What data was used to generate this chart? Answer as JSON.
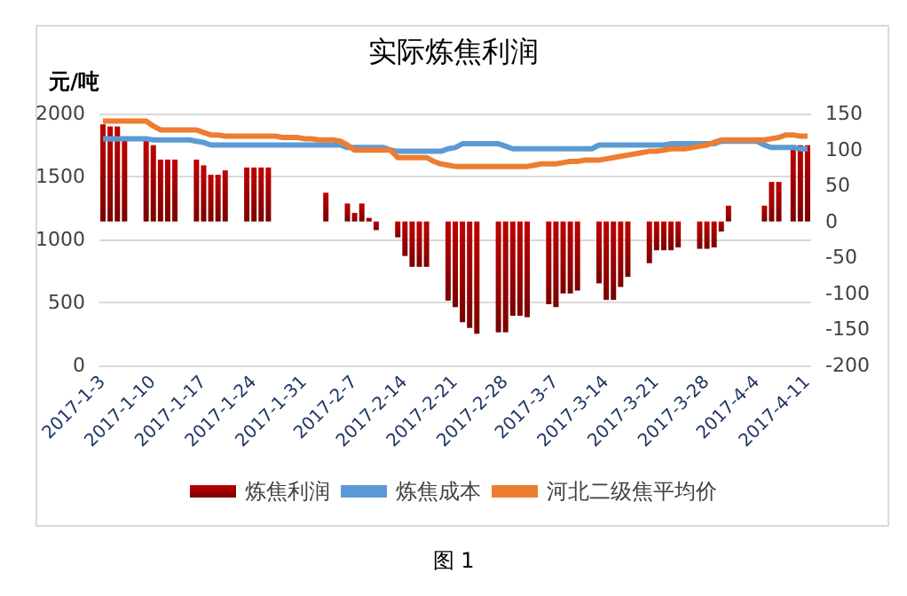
{
  "chart_data": {
    "type": "bar",
    "title": "实际炼焦利润",
    "ylabel": "元/吨",
    "annotations": [
      "图 1"
    ],
    "categories": [
      "2017-1-3",
      null,
      null,
      null,
      null,
      null,
      null,
      "2017-1-10",
      null,
      null,
      null,
      null,
      null,
      null,
      "2017-1-17",
      null,
      null,
      null,
      null,
      null,
      null,
      "2017-1-24",
      null,
      null,
      null,
      null,
      null,
      null,
      "2017-1-31",
      null,
      null,
      null,
      null,
      null,
      null,
      "2017-2-7",
      null,
      null,
      null,
      null,
      null,
      null,
      "2017-2-14",
      null,
      null,
      null,
      null,
      null,
      null,
      "2017-2-21",
      null,
      null,
      null,
      null,
      null,
      null,
      "2017-2-28",
      null,
      null,
      null,
      null,
      null,
      null,
      "2017-3-7",
      null,
      null,
      null,
      null,
      null,
      null,
      "2017-3-14",
      null,
      null,
      null,
      null,
      null,
      null,
      "2017-3-21",
      null,
      null,
      null,
      null,
      null,
      null,
      "2017-3-28",
      null,
      null,
      null,
      null,
      null,
      null,
      "2017-4-4",
      null,
      null,
      null,
      null,
      null,
      null,
      "2017-4-11"
    ],
    "series": [
      {
        "name": "炼焦利润",
        "axis": "y2",
        "color": "#c00000",
        "values": [
          135,
          132,
          132,
          115,
          null,
          null,
          112,
          106,
          86,
          86,
          86,
          null,
          null,
          86,
          78,
          65,
          65,
          71,
          null,
          null,
          75,
          75,
          75,
          75,
          null,
          null,
          null,
          null,
          null,
          null,
          null,
          40,
          null,
          null,
          25,
          12,
          25,
          5,
          -12,
          null,
          null,
          -22,
          -48,
          -63,
          -63,
          -63,
          null,
          null,
          -110,
          -119,
          -140,
          -148,
          -156,
          null,
          null,
          -154,
          -154,
          -131,
          -131,
          -133,
          null,
          null,
          -115,
          -119,
          -100,
          -100,
          -96,
          null,
          null,
          -86,
          -109,
          -109,
          -91,
          -77,
          null,
          null,
          -58,
          -40,
          -40,
          -40,
          -36,
          null,
          null,
          -38,
          -38,
          -36,
          -14,
          22,
          null,
          null,
          null,
          null,
          22,
          55,
          55,
          null,
          106,
          106,
          106
        ]
      },
      {
        "name": "炼焦成本",
        "type": "line",
        "color": "#5b9bd5",
        "values": [
          1800,
          1800,
          1800,
          1800,
          1800,
          1800,
          1800,
          1790,
          1790,
          1790,
          1790,
          1790,
          1790,
          1780,
          1770,
          1750,
          1750,
          1750,
          1750,
          1750,
          1750,
          1750,
          1750,
          1750,
          1750,
          1750,
          1750,
          1750,
          1750,
          1750,
          1750,
          1750,
          1750,
          1750,
          1730,
          1730,
          1730,
          1730,
          1730,
          1730,
          1710,
          1700,
          1700,
          1700,
          1700,
          1700,
          1700,
          1700,
          1720,
          1730,
          1760,
          1760,
          1760,
          1760,
          1760,
          1760,
          1740,
          1720,
          1720,
          1720,
          1720,
          1720,
          1720,
          1720,
          1720,
          1720,
          1720,
          1720,
          1720,
          1750,
          1750,
          1750,
          1750,
          1750,
          1750,
          1750,
          1750,
          1750,
          1750,
          1760,
          1760,
          1760,
          1760,
          1760,
          1760,
          1760,
          1780,
          1780,
          1780,
          1780,
          1780,
          1780,
          1750,
          1730,
          1730,
          1730,
          1730,
          1720,
          1720
        ]
      },
      {
        "name": "河北二级焦平均价",
        "type": "line",
        "color": "#ed7d31",
        "values": [
          1940,
          1940,
          1940,
          1940,
          1940,
          1940,
          1940,
          1900,
          1870,
          1870,
          1870,
          1870,
          1870,
          1870,
          1850,
          1830,
          1830,
          1820,
          1820,
          1820,
          1820,
          1820,
          1820,
          1820,
          1820,
          1810,
          1810,
          1810,
          1800,
          1800,
          1790,
          1790,
          1790,
          1780,
          1750,
          1710,
          1710,
          1710,
          1710,
          1710,
          1710,
          1650,
          1650,
          1650,
          1650,
          1650,
          1620,
          1600,
          1590,
          1580,
          1580,
          1580,
          1580,
          1580,
          1580,
          1580,
          1580,
          1580,
          1580,
          1580,
          1590,
          1600,
          1600,
          1600,
          1610,
          1620,
          1620,
          1630,
          1630,
          1630,
          1640,
          1650,
          1660,
          1670,
          1680,
          1690,
          1700,
          1700,
          1710,
          1720,
          1720,
          1720,
          1730,
          1740,
          1750,
          1770,
          1790,
          1790,
          1790,
          1790,
          1790,
          1790,
          1790,
          1800,
          1810,
          1830,
          1830,
          1820,
          1820
        ]
      }
    ],
    "ylim": [
      0,
      2000
    ],
    "yticks": [
      0,
      500,
      1000,
      1500,
      2000
    ],
    "y2lim": [
      -200,
      150
    ],
    "y2ticks": [
      -200,
      -150,
      -100,
      -50,
      0,
      50,
      100,
      150
    ],
    "grid": "y",
    "legend": "bottom",
    "marker": "none",
    "line_style": "solid"
  }
}
